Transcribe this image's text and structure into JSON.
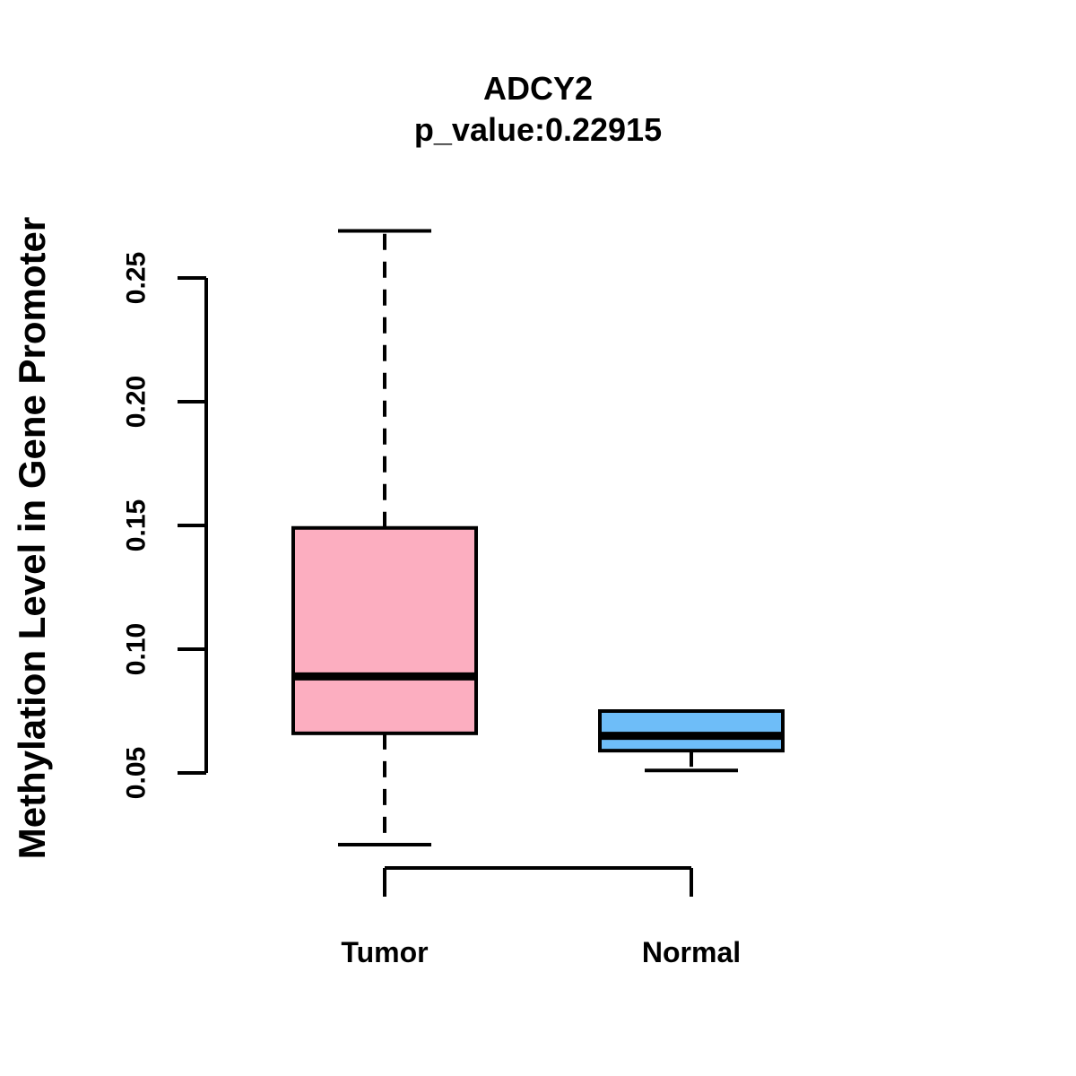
{
  "chart_data": {
    "type": "boxplot",
    "title": "ADCY2",
    "subtitle": "p_value:0.22915",
    "ylabel": "Methylation Level in Gene Promoter",
    "categories": [
      "Tumor",
      "Normal"
    ],
    "yticks": [
      0.05,
      0.1,
      0.15,
      0.2,
      0.25
    ],
    "ytick_labels": [
      "0.05",
      "0.10",
      "0.15",
      "0.20",
      "0.25"
    ],
    "grid": false,
    "legend": "none",
    "line_color": "#000000",
    "background_color": "#FFFFFF",
    "series": [
      {
        "name": "Tumor",
        "color": "#FCAEC0",
        "lower_whisker": 0.021,
        "q1": 0.066,
        "median": 0.089,
        "q3": 0.149,
        "upper_whisker": 0.269
      },
      {
        "name": "Normal",
        "color": "#6EBDF8",
        "lower_whisker": 0.051,
        "q1": 0.059,
        "median": 0.065,
        "q3": 0.075,
        "upper_whisker": 0.075
      }
    ]
  }
}
